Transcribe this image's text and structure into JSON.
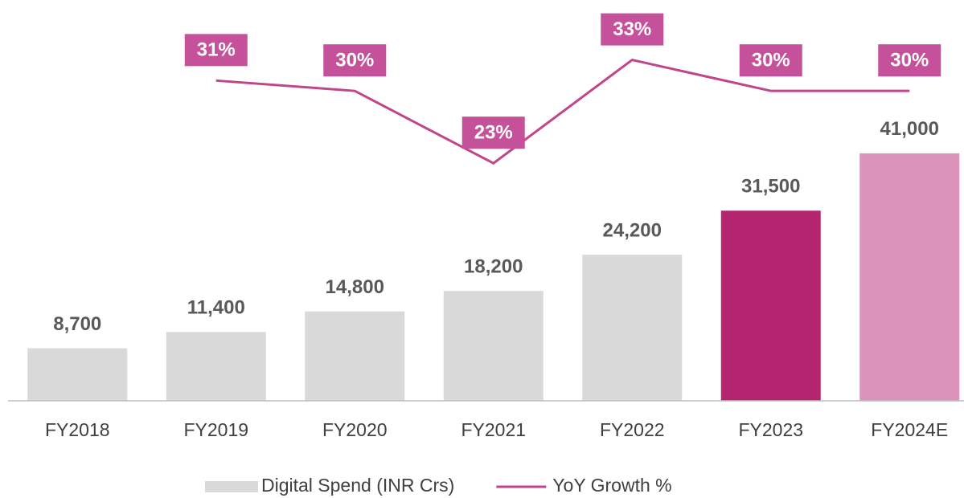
{
  "chart_data": {
    "type": "bar",
    "categories": [
      "FY2018",
      "FY2019",
      "FY2020",
      "FY2021",
      "FY2022",
      "FY2023",
      "FY2024E"
    ],
    "series": [
      {
        "name": "Digital Spend (INR Crs)",
        "type": "bar",
        "color": "#d9d9d9",
        "colors": [
          "#d9d9d9",
          "#d9d9d9",
          "#d9d9d9",
          "#d9d9d9",
          "#d9d9d9",
          "#b5256f",
          "#db93bb"
        ],
        "values": [
          8700,
          11400,
          14800,
          18200,
          24200,
          31500,
          41000
        ],
        "value_labels": [
          "8,700",
          "11,400",
          "14,800",
          "18,200",
          "24,200",
          "31,500",
          "41,000"
        ]
      },
      {
        "name": "YoY Growth %",
        "type": "line",
        "axis": "y2",
        "color": "#c0458a",
        "label_color": "#c4519a",
        "values": [
          null,
          31,
          30,
          23,
          33,
          30,
          30
        ],
        "value_labels": [
          null,
          "31%",
          "30%",
          "23%",
          "33%",
          "30%",
          "30%"
        ]
      }
    ],
    "ylim": [
      0,
      66400
    ],
    "y2lim": [
      0,
      38.8
    ],
    "legend": "bottom"
  }
}
